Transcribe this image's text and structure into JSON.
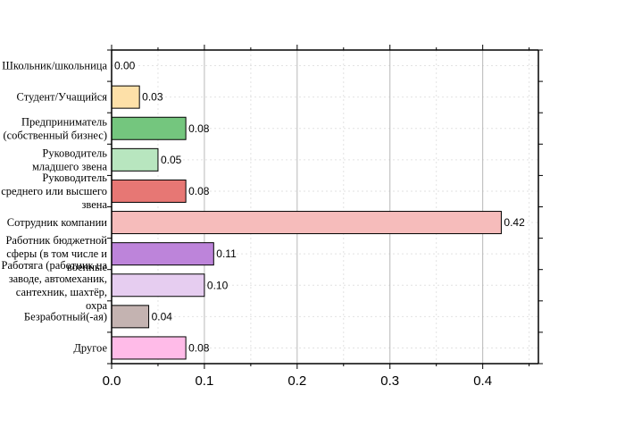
{
  "chart_data": {
    "type": "bar",
    "orientation": "horizontal",
    "categories": [
      "Школьник/школьница",
      "Студент/Учащийся",
      "Предприниматель (собственный бизнес)",
      "Руководитель младшего звена",
      "Руководитель среднего или высшего звена",
      "Сотрудник компании",
      "Работник бюджетной сферы (в том числе и военные)",
      "Работяга (работник на заводе, автомеханик, сантехник, шахтёр, охра",
      "Безработный(-ая)",
      "Другое"
    ],
    "category_lines": [
      [
        "Школьник/школьница"
      ],
      [
        "Студент/Учащийся"
      ],
      [
        "Предприниматель",
        "(собственный бизнес)"
      ],
      [
        "Руководитель",
        "младшего звена"
      ],
      [
        "Руководитель",
        "среднего или высшего",
        "звена"
      ],
      [
        "Сотрудник компании"
      ],
      [
        "Работник бюджетной",
        "сферы (в том числе и",
        "военные"
      ],
      [
        "Работяга (работник на",
        "заводе, автомеханик,",
        "сантехник, шахтёр,",
        "охра"
      ],
      [
        "Безработный(-ая)"
      ],
      [
        "Другое"
      ]
    ],
    "values": [
      0.0,
      0.03,
      0.08,
      0.05,
      0.08,
      0.42,
      0.11,
      0.1,
      0.04,
      0.08
    ],
    "value_labels": [
      "0.00",
      "0.03",
      "0.08",
      "0.05",
      "0.08",
      "0.42",
      "0.11",
      "0.10",
      "0.04",
      "0.08"
    ],
    "colors": [
      "#ffffff",
      "#fde0a8",
      "#74c67e",
      "#b8e6bf",
      "#e77774",
      "#f6bcbb",
      "#bd84da",
      "#e6cdf0",
      "#c4b3b1",
      "#ffbbe8"
    ],
    "xlim": [
      0,
      0.46
    ],
    "xticks": [
      0.0,
      0.1,
      0.2,
      0.3,
      0.4
    ],
    "xtick_labels": [
      "0.0",
      "0.1",
      "0.2",
      "0.3",
      "0.4"
    ],
    "grid": true,
    "title": "",
    "xlabel": "",
    "ylabel": ""
  }
}
